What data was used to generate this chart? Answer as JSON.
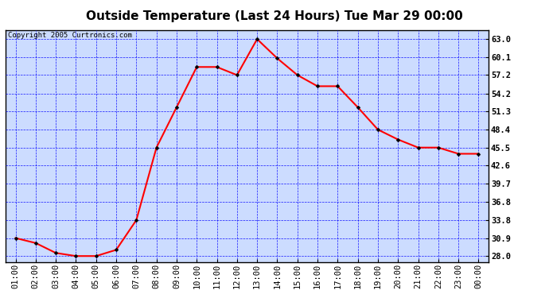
{
  "title": "Outside Temperature (Last 24 Hours) Tue Mar 29 00:00",
  "copyright_text": "Copyright 2005 Curtronics.com",
  "x_labels": [
    "01:00",
    "02:00",
    "03:00",
    "04:00",
    "05:00",
    "06:00",
    "07:00",
    "08:00",
    "09:00",
    "10:00",
    "11:00",
    "12:00",
    "13:00",
    "14:00",
    "15:00",
    "16:00",
    "17:00",
    "18:00",
    "19:00",
    "20:00",
    "21:00",
    "22:00",
    "23:00",
    "00:00"
  ],
  "y_values": [
    30.9,
    30.1,
    28.5,
    28.0,
    28.0,
    29.0,
    33.8,
    45.5,
    52.0,
    58.5,
    58.5,
    57.2,
    63.0,
    59.9,
    57.2,
    55.4,
    55.4,
    52.0,
    48.4,
    46.8,
    45.5,
    45.5,
    44.5,
    44.5
  ],
  "yticks": [
    28.0,
    30.9,
    33.8,
    36.8,
    39.7,
    42.6,
    45.5,
    48.4,
    51.3,
    54.2,
    57.2,
    60.1,
    63.0
  ],
  "line_color": "red",
  "marker": "s",
  "marker_size": 2.5,
  "bg_color": "#ccdcff",
  "grid_color": "blue",
  "title_fontsize": 11,
  "copyright_fontsize": 6.5,
  "tick_labelsize": 7.5,
  "ylim": [
    27.0,
    64.5
  ],
  "xlim": [
    -0.5,
    23.5
  ]
}
